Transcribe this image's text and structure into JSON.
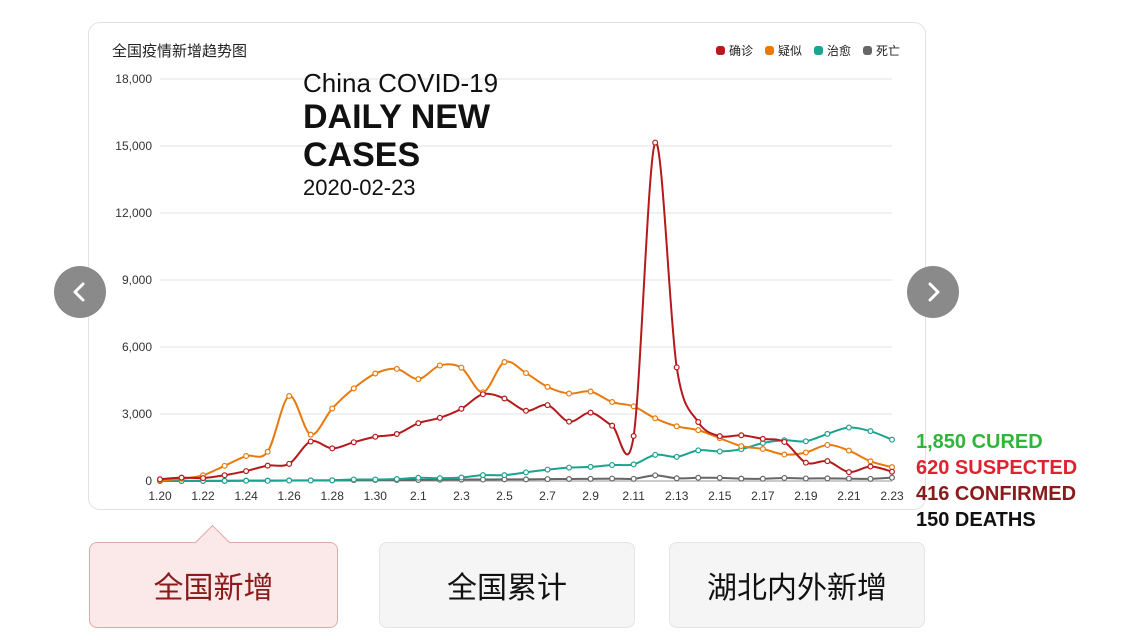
{
  "chart_data": {
    "type": "line",
    "title": "全国疫情新增趋势图",
    "x": [
      "1.20",
      "1.21",
      "1.22",
      "1.23",
      "1.24",
      "1.25",
      "1.26",
      "1.27",
      "1.28",
      "1.29",
      "1.30",
      "1.31",
      "2.1",
      "2.2",
      "2.3",
      "2.4",
      "2.5",
      "2.6",
      "2.7",
      "2.8",
      "2.9",
      "2.10",
      "2.11",
      "2.12",
      "2.13",
      "2.14",
      "2.15",
      "2.16",
      "2.17",
      "2.18",
      "2.19",
      "2.20",
      "2.21",
      "2.22",
      "2.23"
    ],
    "x_tick_labels": [
      "1.20",
      "1.22",
      "1.24",
      "1.26",
      "1.28",
      "1.30",
      "2.1",
      "2.3",
      "2.5",
      "2.7",
      "2.9",
      "2.11",
      "2.13",
      "2.15",
      "2.17",
      "2.19",
      "2.21",
      "2.23"
    ],
    "ylim": [
      0,
      18000
    ],
    "y_ticks": [
      "0",
      "3,000",
      "6,000",
      "9,000",
      "12,000",
      "15,000",
      "18,000"
    ],
    "y_tick_values": [
      0,
      3000,
      6000,
      9000,
      12000,
      15000,
      18000
    ],
    "legend_position": "top-right",
    "grid": true,
    "series": [
      {
        "name": "确诊",
        "color": "#b5191c",
        "values": [
          77,
          149,
          131,
          259,
          444,
          688,
          769,
          1771,
          1459,
          1737,
          1982,
          2102,
          2590,
          2829,
          3235,
          3887,
          3694,
          3143,
          3399,
          2656,
          3062,
          2478,
          2015,
          15152,
          5090,
          2641,
          2009,
          2048,
          1886,
          1749,
          820,
          889,
          397,
          648,
          416
        ]
      },
      {
        "name": "疑似",
        "color": "#e8790c",
        "values": [
          27,
          100,
          257,
          680,
          1118,
          1309,
          3806,
          2077,
          3248,
          4148,
          4812,
          5019,
          4562,
          5173,
          5072,
          3971,
          5328,
          4833,
          4214,
          3916,
          4008,
          3536,
          3342,
          2807,
          2450,
          2277,
          1918,
          1563,
          1432,
          1185,
          1277,
          1614,
          1361,
          882,
          620
        ]
      },
      {
        "name": "治愈",
        "color": "#1aa38f",
        "values": [
          0,
          0,
          3,
          6,
          11,
          10,
          21,
          25,
          31,
          68,
          65,
          88,
          144,
          126,
          157,
          262,
          261,
          387,
          510,
          600,
          632,
          716,
          744,
          1171,
          1081,
          1373,
          1323,
          1425,
          1701,
          1824,
          1779,
          2109,
          2394,
          2231,
          1850
        ]
      },
      {
        "name": "死亡",
        "color": "#666666",
        "values": [
          0,
          3,
          8,
          8,
          16,
          15,
          24,
          26,
          26,
          38,
          43,
          46,
          45,
          57,
          64,
          65,
          73,
          73,
          86,
          89,
          97,
          108,
          97,
          254,
          121,
          143,
          142,
          105,
          98,
          136,
          114,
          118,
          109,
          97,
          150
        ]
      }
    ]
  },
  "overlay": {
    "line1": "China COVID-19",
    "line2": "DAILY NEW CASES",
    "line3": "2020-02-23"
  },
  "summary": [
    {
      "text": "1,850 CURED",
      "color": "#2fb53a"
    },
    {
      "text": "620 SUSPECTED",
      "color": "#e02230"
    },
    {
      "text": "416 CONFIRMED",
      "color": "#8b1a1a"
    },
    {
      "text": "150 DEATHS",
      "color": "#111111"
    }
  ],
  "tabs": [
    {
      "label": "全国新增"
    },
    {
      "label": "全国累计"
    },
    {
      "label": "湖北内外新增"
    }
  ]
}
